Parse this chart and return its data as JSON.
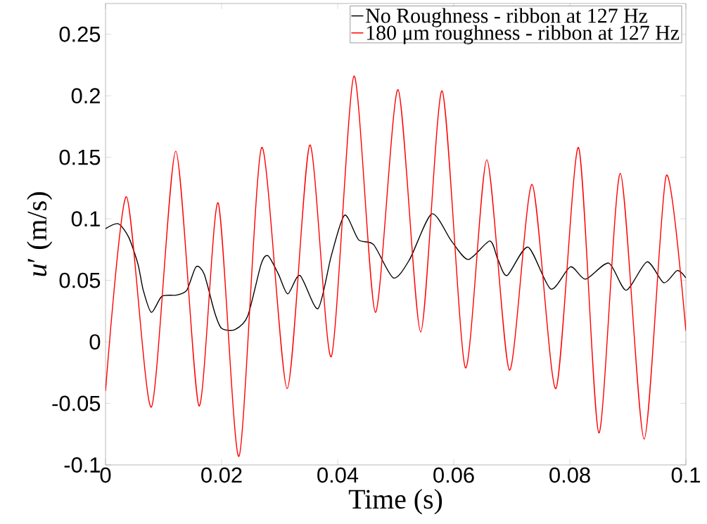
{
  "chart_data": {
    "type": "line",
    "xlabel": "Time (s)",
    "ylabel": "*u*′ (m/s)",
    "xlim": [
      0,
      0.1
    ],
    "ylim": [
      -0.1,
      0.275
    ],
    "xticks": [
      0,
      0.02,
      0.04,
      0.06,
      0.08,
      0.1
    ],
    "yticks": [
      -0.1,
      -0.05,
      0,
      0.05,
      0.1,
      0.15,
      0.2,
      0.25
    ],
    "legend": "top right",
    "marker": "none",
    "line_style": "solid",
    "series": [
      {
        "name": "No Roughness - ribbon at 127 Hz",
        "color": "#000000",
        "x": [
          0,
          0.0022,
          0.004,
          0.0056,
          0.0065,
          0.0079,
          0.0097,
          0.0122,
          0.014,
          0.0156,
          0.017,
          0.0188,
          0.02,
          0.0223,
          0.0245,
          0.0268,
          0.028,
          0.0298,
          0.0314,
          0.0335,
          0.0366,
          0.0389,
          0.0412,
          0.0436,
          0.0462,
          0.0496,
          0.0524,
          0.0562,
          0.0596,
          0.0625,
          0.0662,
          0.0676,
          0.0692,
          0.0728,
          0.0767,
          0.0801,
          0.0827,
          0.0867,
          0.0897,
          0.0933,
          0.0962,
          0.0985,
          0.1
        ],
        "values": [
          0.092,
          0.096,
          0.085,
          0.063,
          0.042,
          0.024,
          0.037,
          0.038,
          0.042,
          0.061,
          0.055,
          0.024,
          0.011,
          0.01,
          0.021,
          0.063,
          0.07,
          0.055,
          0.039,
          0.054,
          0.027,
          0.07,
          0.103,
          0.083,
          0.079,
          0.052,
          0.067,
          0.104,
          0.082,
          0.067,
          0.082,
          0.067,
          0.054,
          0.077,
          0.043,
          0.061,
          0.051,
          0.064,
          0.042,
          0.065,
          0.048,
          0.058,
          0.052
        ]
      },
      {
        "name": "180 μm roughness - ribbon at 127 Hz",
        "color": "#ff0000",
        "x": [
          0,
          0.0036,
          0.0079,
          0.0121,
          0.0161,
          0.0194,
          0.023,
          0.0269,
          0.0313,
          0.0352,
          0.0389,
          0.0428,
          0.0465,
          0.0504,
          0.0543,
          0.058,
          0.062,
          0.0657,
          0.0696,
          0.0735,
          0.0776,
          0.0815,
          0.085,
          0.0887,
          0.0928,
          0.0966,
          0.1
        ],
        "values": [
          -0.04,
          0.118,
          -0.053,
          0.155,
          -0.052,
          0.113,
          -0.093,
          0.158,
          -0.038,
          0.16,
          -0.012,
          0.216,
          0.024,
          0.205,
          0.008,
          0.204,
          -0.021,
          0.148,
          -0.023,
          0.128,
          -0.038,
          0.158,
          -0.074,
          0.137,
          -0.079,
          0.135,
          0.009
        ]
      }
    ]
  }
}
